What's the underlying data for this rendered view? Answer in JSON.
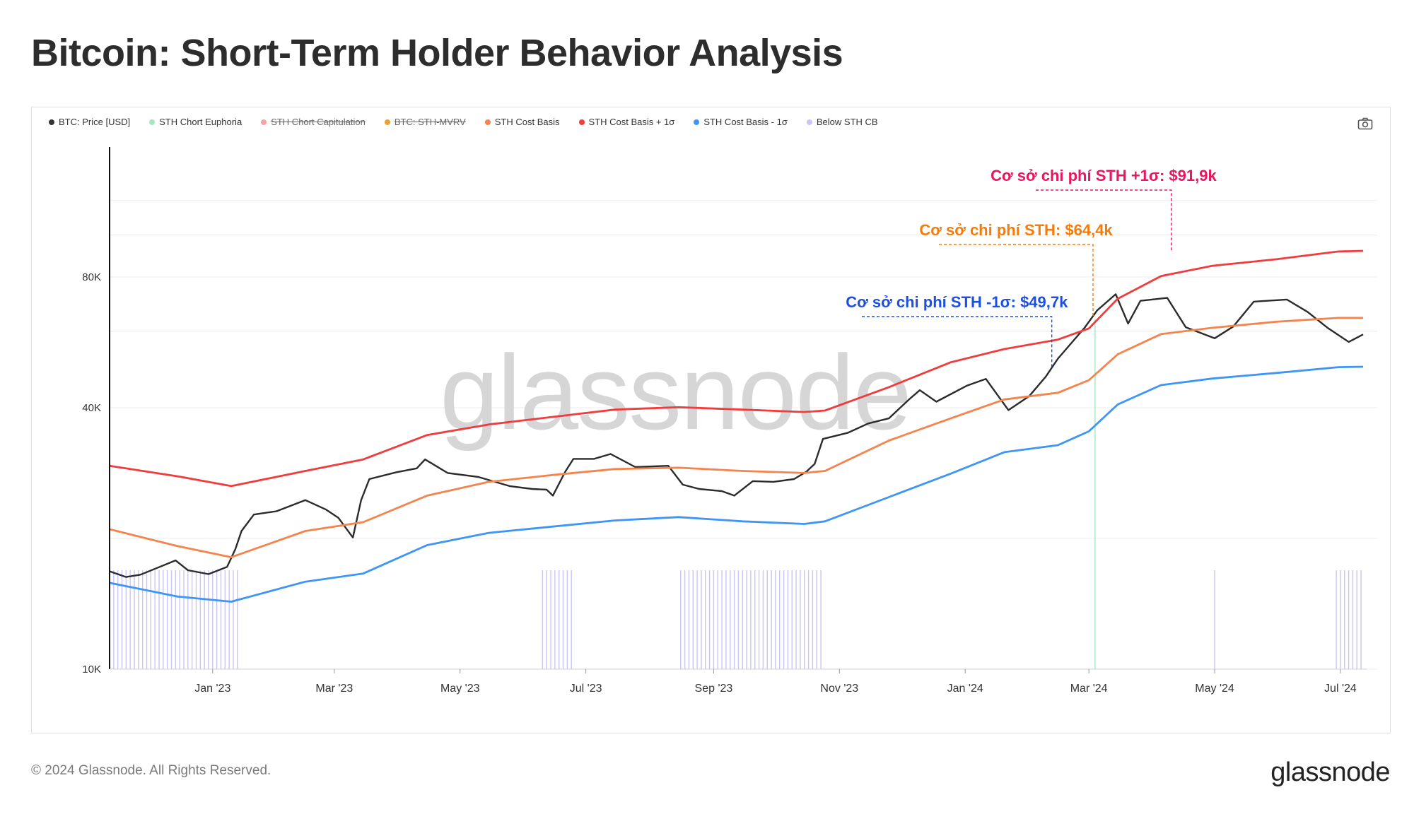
{
  "title": "Bitcoin: Short-Term Holder Behavior Analysis",
  "footer": {
    "copyright": "© 2024 Glassnode. All Rights Reserved.",
    "logo": "glassnode"
  },
  "watermark": "glassnode",
  "legend": [
    {
      "label": "BTC: Price [USD]",
      "color": "#333333",
      "enabled": true
    },
    {
      "label": "STH Chort Euphoria",
      "color": "#a8e6c1",
      "enabled": true
    },
    {
      "label": "STH Chort Capitulation",
      "color": "#f2a3a3",
      "enabled": false
    },
    {
      "label": "BTC: STH-MVRV",
      "color": "#f0a030",
      "enabled": false
    },
    {
      "label": "STH Cost Basis",
      "color": "#f5844c",
      "enabled": true
    },
    {
      "label": "STH Cost Basis + 1σ",
      "color": "#f03c3c",
      "enabled": true
    },
    {
      "label": "STH Cost Basis - 1σ",
      "color": "#3d95f5",
      "enabled": true
    },
    {
      "label": "Below STH CB",
      "color": "#c9c5f5",
      "enabled": true
    }
  ],
  "annotations": [
    {
      "text": "Cơ sở chi phí STH +1σ: $91,9k",
      "color": "#e8155f",
      "series": "STH Cost Basis + 1σ",
      "date": "2024-04-10"
    },
    {
      "text": "Cơ sở chi phí STH: $64,4k",
      "color": "#f57c0a",
      "series": "STH Cost Basis",
      "date": "2024-03-03"
    },
    {
      "text": "Cơ sở chi phí STH -1σ: $49,7k",
      "color": "#1d4fe0",
      "series": "STH Cost Basis - 1σ",
      "date": "2024-02-12"
    }
  ],
  "chart_data": {
    "type": "line",
    "yscale": "log",
    "ylim": [
      10000,
      160000
    ],
    "xlim": [
      "2022-11-12",
      "2024-07-12"
    ],
    "yticks": [
      {
        "value": 10000,
        "label": "10K"
      },
      {
        "value": 40000,
        "label": "40K"
      },
      {
        "value": 80000,
        "label": "80K"
      }
    ],
    "xticks": [
      {
        "date": "2023-01-01",
        "label": "Jan '23"
      },
      {
        "date": "2023-03-01",
        "label": "Mar '23"
      },
      {
        "date": "2023-05-01",
        "label": "May '23"
      },
      {
        "date": "2023-07-01",
        "label": "Jul '23"
      },
      {
        "date": "2023-09-01",
        "label": "Sep '23"
      },
      {
        "date": "2023-11-01",
        "label": "Nov '23"
      },
      {
        "date": "2024-01-01",
        "label": "Jan '24"
      },
      {
        "date": "2024-03-01",
        "label": "Mar '24"
      },
      {
        "date": "2024-05-01",
        "label": "May '24"
      },
      {
        "date": "2024-07-01",
        "label": "Jul '24"
      }
    ],
    "series": [
      {
        "name": "BTC: Price [USD]",
        "color": "#2b2b2b",
        "points": [
          [
            "2022-11-12",
            16800
          ],
          [
            "2022-11-20",
            16300
          ],
          [
            "2022-11-27",
            16500
          ],
          [
            "2022-12-05",
            17100
          ],
          [
            "2022-12-14",
            17800
          ],
          [
            "2022-12-20",
            16900
          ],
          [
            "2022-12-30",
            16550
          ],
          [
            "2023-01-08",
            17200
          ],
          [
            "2023-01-12",
            18900
          ],
          [
            "2023-01-15",
            20800
          ],
          [
            "2023-01-21",
            22700
          ],
          [
            "2023-02-01",
            23100
          ],
          [
            "2023-02-15",
            24500
          ],
          [
            "2023-02-25",
            23300
          ],
          [
            "2023-03-03",
            22300
          ],
          [
            "2023-03-10",
            20100
          ],
          [
            "2023-03-14",
            24500
          ],
          [
            "2023-03-18",
            27400
          ],
          [
            "2023-03-31",
            28400
          ],
          [
            "2023-04-10",
            29000
          ],
          [
            "2023-04-14",
            30400
          ],
          [
            "2023-04-25",
            28300
          ],
          [
            "2023-05-10",
            27700
          ],
          [
            "2023-05-25",
            26400
          ],
          [
            "2023-06-05",
            26000
          ],
          [
            "2023-06-12",
            25900
          ],
          [
            "2023-06-15",
            25100
          ],
          [
            "2023-06-21",
            28500
          ],
          [
            "2023-06-25",
            30500
          ],
          [
            "2023-07-05",
            30500
          ],
          [
            "2023-07-13",
            31300
          ],
          [
            "2023-07-25",
            29200
          ],
          [
            "2023-08-10",
            29400
          ],
          [
            "2023-08-17",
            26600
          ],
          [
            "2023-08-25",
            26000
          ],
          [
            "2023-09-05",
            25700
          ],
          [
            "2023-09-11",
            25100
          ],
          [
            "2023-09-20",
            27100
          ],
          [
            "2023-09-30",
            27000
          ],
          [
            "2023-10-10",
            27400
          ],
          [
            "2023-10-16",
            28500
          ],
          [
            "2023-10-20",
            29700
          ],
          [
            "2023-10-24",
            33900
          ],
          [
            "2023-11-05",
            35000
          ],
          [
            "2023-11-15",
            36800
          ],
          [
            "2023-11-25",
            37800
          ],
          [
            "2023-12-05",
            41900
          ],
          [
            "2023-12-10",
            43900
          ],
          [
            "2023-12-18",
            41300
          ],
          [
            "2024-01-02",
            45000
          ],
          [
            "2024-01-11",
            46600
          ],
          [
            "2024-01-22",
            39500
          ],
          [
            "2024-02-01",
            42500
          ],
          [
            "2024-02-09",
            47100
          ],
          [
            "2024-02-15",
            51900
          ],
          [
            "2024-02-28",
            61200
          ],
          [
            "2024-03-05",
            67000
          ],
          [
            "2024-03-14",
            73000
          ],
          [
            "2024-03-20",
            62500
          ],
          [
            "2024-03-26",
            70500
          ],
          [
            "2024-04-08",
            71600
          ],
          [
            "2024-04-17",
            61300
          ],
          [
            "2024-05-01",
            57800
          ],
          [
            "2024-05-10",
            61500
          ],
          [
            "2024-05-20",
            70200
          ],
          [
            "2024-06-05",
            71000
          ],
          [
            "2024-06-15",
            66500
          ],
          [
            "2024-06-25",
            61000
          ],
          [
            "2024-07-05",
            56700
          ],
          [
            "2024-07-12",
            59000
          ]
        ]
      },
      {
        "name": "STH Cost Basis",
        "color": "#f5844c",
        "points": [
          [
            "2022-11-12",
            21000
          ],
          [
            "2022-12-15",
            19200
          ],
          [
            "2023-01-10",
            18100
          ],
          [
            "2023-02-15",
            20800
          ],
          [
            "2023-03-15",
            21800
          ],
          [
            "2023-04-15",
            25100
          ],
          [
            "2023-05-15",
            27000
          ],
          [
            "2023-06-15",
            28000
          ],
          [
            "2023-07-15",
            28900
          ],
          [
            "2023-08-15",
            29100
          ],
          [
            "2023-09-15",
            28600
          ],
          [
            "2023-10-15",
            28300
          ],
          [
            "2023-10-25",
            28600
          ],
          [
            "2023-11-25",
            33600
          ],
          [
            "2023-12-25",
            37800
          ],
          [
            "2024-01-20",
            41800
          ],
          [
            "2024-02-15",
            43300
          ],
          [
            "2024-03-01",
            46300
          ],
          [
            "2024-03-15",
            53100
          ],
          [
            "2024-04-05",
            59100
          ],
          [
            "2024-04-30",
            61100
          ],
          [
            "2024-05-31",
            63100
          ],
          [
            "2024-06-30",
            64400
          ],
          [
            "2024-07-12",
            64400
          ]
        ]
      },
      {
        "name": "STH Cost Basis + 1σ",
        "color": "#f03c3c",
        "points": [
          [
            "2022-11-12",
            29400
          ],
          [
            "2022-12-15",
            27800
          ],
          [
            "2023-01-10",
            26400
          ],
          [
            "2023-02-15",
            28600
          ],
          [
            "2023-03-15",
            30400
          ],
          [
            "2023-04-15",
            34600
          ],
          [
            "2023-05-15",
            36600
          ],
          [
            "2023-06-15",
            38100
          ],
          [
            "2023-07-15",
            39600
          ],
          [
            "2023-08-15",
            40100
          ],
          [
            "2023-09-15",
            39600
          ],
          [
            "2023-10-15",
            39100
          ],
          [
            "2023-10-25",
            39400
          ],
          [
            "2023-11-25",
            44600
          ],
          [
            "2023-12-25",
            50900
          ],
          [
            "2024-01-20",
            54600
          ],
          [
            "2024-02-15",
            57400
          ],
          [
            "2024-03-01",
            60900
          ],
          [
            "2024-03-15",
            71300
          ],
          [
            "2024-04-05",
            80400
          ],
          [
            "2024-04-30",
            84900
          ],
          [
            "2024-05-31",
            87900
          ],
          [
            "2024-06-30",
            91600
          ],
          [
            "2024-07-12",
            91900
          ]
        ]
      },
      {
        "name": "STH Cost Basis - 1σ",
        "color": "#3d95f5",
        "points": [
          [
            "2022-11-12",
            15800
          ],
          [
            "2022-12-15",
            14700
          ],
          [
            "2023-01-10",
            14300
          ],
          [
            "2023-02-15",
            15900
          ],
          [
            "2023-03-15",
            16600
          ],
          [
            "2023-04-15",
            19300
          ],
          [
            "2023-05-15",
            20600
          ],
          [
            "2023-06-15",
            21300
          ],
          [
            "2023-07-15",
            22000
          ],
          [
            "2023-08-15",
            22400
          ],
          [
            "2023-09-15",
            21900
          ],
          [
            "2023-10-15",
            21600
          ],
          [
            "2023-10-25",
            21900
          ],
          [
            "2023-11-25",
            24900
          ],
          [
            "2023-12-25",
            28200
          ],
          [
            "2024-01-20",
            31600
          ],
          [
            "2024-02-15",
            32800
          ],
          [
            "2024-03-01",
            35300
          ],
          [
            "2024-03-15",
            40700
          ],
          [
            "2024-04-05",
            45100
          ],
          [
            "2024-04-30",
            46700
          ],
          [
            "2024-05-31",
            48100
          ],
          [
            "2024-06-30",
            49600
          ],
          [
            "2024-07-12",
            49700
          ]
        ]
      }
    ],
    "below_sth_cb_periods": [
      [
        "2022-11-12",
        "2023-01-13"
      ],
      [
        "2023-06-10",
        "2023-06-25"
      ],
      [
        "2023-08-16",
        "2023-10-23"
      ],
      [
        "2024-05-01",
        "2024-05-02"
      ],
      [
        "2024-06-29",
        "2024-07-12"
      ]
    ],
    "sth_euphoria_markers": [
      "2024-03-04"
    ]
  }
}
